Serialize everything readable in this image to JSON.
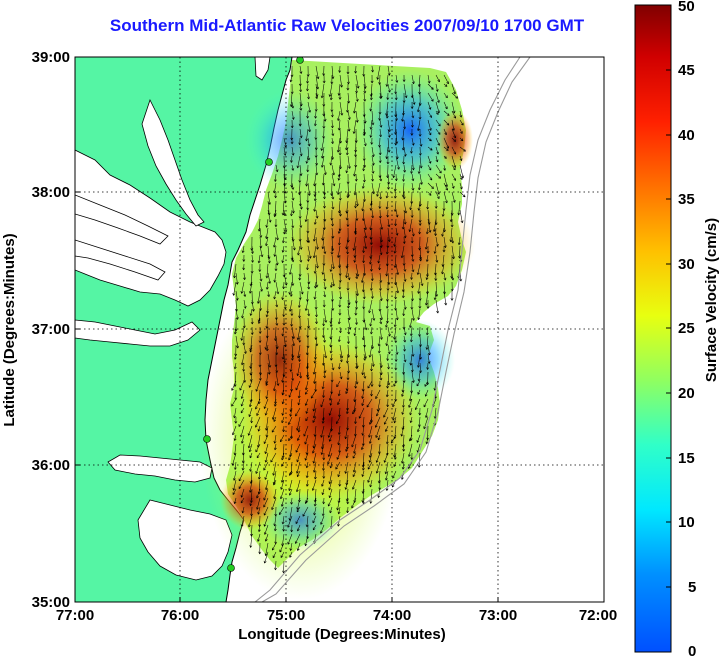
{
  "title": "Southern Mid-Atlantic Raw Velocities 2007/09/10 1700 GMT",
  "x_axis": {
    "label": "Longitude (Degrees:Minutes)",
    "ticks": [
      "77:00",
      "76:00",
      "75:00",
      "74:00",
      "73:00",
      "72:00"
    ]
  },
  "y_axis": {
    "label": "Latitude (Degrees:Minutes)",
    "ticks": [
      "39:00",
      "38:00",
      "37:00",
      "36:00",
      "35:00"
    ]
  },
  "colorbar": {
    "label": "Surface Velocity (cm/s)",
    "ticks": [
      "50",
      "45",
      "40",
      "35",
      "30",
      "25",
      "20",
      "15",
      "10",
      "5",
      "0"
    ],
    "range": [
      0,
      50
    ],
    "colormap": "jet"
  },
  "colors": {
    "land": "#55f5a4",
    "water": "#ffffff",
    "coast": "#000000",
    "bathymetry": "#9a9a9a",
    "station": "#22cc22",
    "title": "#1a1aff"
  }
}
